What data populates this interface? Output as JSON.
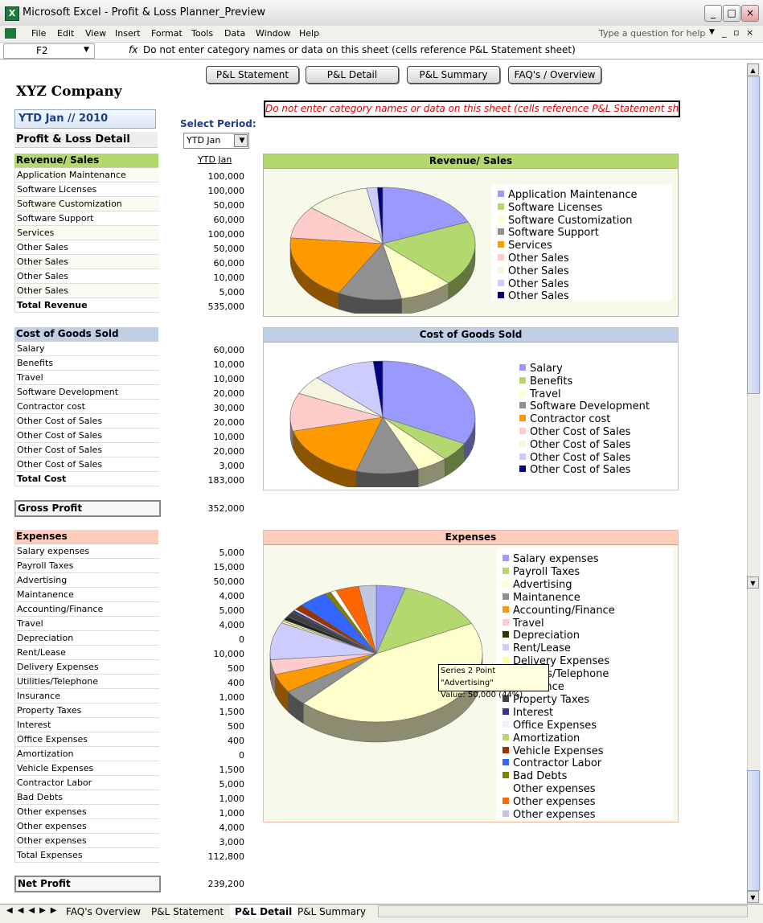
{
  "window": {
    "title": "Microsoft Excel - Profit & Loss Planner_Preview",
    "app_icon_letter": "X",
    "minimize": "_",
    "maximize": "□",
    "close": "×"
  },
  "menubar": {
    "items": [
      "File",
      "Edit",
      "View",
      "Insert",
      "Format",
      "Tools",
      "Data",
      "Window",
      "Help"
    ],
    "ask_placeholder": "Type a question for help"
  },
  "formula_bar": {
    "cell": "F2",
    "fx": "fx",
    "formula": "Do not enter category names or data on this sheet (cells reference P&L Statement sheet)"
  },
  "sheet": {
    "buttons": [
      "P&L Statement",
      "P&L Detail",
      "P&L Summary",
      "FAQ's / Overview"
    ],
    "company": "XYZ Company",
    "warning": "Do not enter category names or data on this sheet (cells reference P&L Statement sheet)",
    "period_display": "YTD Jan // 2010",
    "section_title": "Profit & Loss Detail",
    "select_period_label": "Select Period:",
    "period_value": "YTD Jan",
    "column_header": "YTD Jan",
    "revenue": {
      "header": "Revenue/ Sales",
      "rows": [
        {
          "label": "Application Maintenance",
          "value": "100,000"
        },
        {
          "label": "Software Licenses",
          "value": "100,000"
        },
        {
          "label": "Software Customization",
          "value": "50,000"
        },
        {
          "label": "Software Support",
          "value": "60,000"
        },
        {
          "label": "Services",
          "value": "100,000"
        },
        {
          "label": "Other Sales",
          "value": "50,000"
        },
        {
          "label": "Other Sales",
          "value": "60,000"
        },
        {
          "label": "Other Sales",
          "value": "10,000"
        },
        {
          "label": "Other Sales",
          "value": "5,000"
        }
      ],
      "total_label": "Total Revenue",
      "total_value": "535,000"
    },
    "cogs": {
      "header": "Cost of Goods Sold",
      "rows": [
        {
          "label": "Salary",
          "value": "60,000"
        },
        {
          "label": "Benefits",
          "value": "10,000"
        },
        {
          "label": "Travel",
          "value": "10,000"
        },
        {
          "label": "Software Development",
          "value": "20,000"
        },
        {
          "label": "Contractor cost",
          "value": "30,000"
        },
        {
          "label": "Other Cost of Sales",
          "value": "20,000"
        },
        {
          "label": "Other Cost of Sales",
          "value": "10,000"
        },
        {
          "label": "Other Cost of Sales",
          "value": "20,000"
        },
        {
          "label": "Other Cost of Sales",
          "value": "3,000"
        }
      ],
      "total_label": "Total Cost",
      "total_value": "183,000"
    },
    "gross_profit": {
      "label": "Gross Profit",
      "value": "352,000"
    },
    "expenses": {
      "header": "Expenses",
      "rows": [
        {
          "label": "Salary expenses",
          "value": "5,000"
        },
        {
          "label": "Payroll Taxes",
          "value": "15,000"
        },
        {
          "label": "Advertising",
          "value": "50,000"
        },
        {
          "label": "Maintanence",
          "value": "4,000"
        },
        {
          "label": "Accounting/Finance",
          "value": "5,000"
        },
        {
          "label": "Travel",
          "value": "4,000"
        },
        {
          "label": "Depreciation",
          "value": "0"
        },
        {
          "label": "Rent/Lease",
          "value": "10,000"
        },
        {
          "label": "Delivery Expenses",
          "value": "500"
        },
        {
          "label": "Utilities/Telephone",
          "value": "400"
        },
        {
          "label": "Insurance",
          "value": "1,000"
        },
        {
          "label": "Property Taxes",
          "value": "1,500"
        },
        {
          "label": "Interest",
          "value": "500"
        },
        {
          "label": "Office Expenses",
          "value": "400"
        },
        {
          "label": "Amortization",
          "value": "0"
        },
        {
          "label": "Vehicle Expenses",
          "value": "1,500"
        },
        {
          "label": "Contractor Labor",
          "value": "5,000"
        },
        {
          "label": "Bad Debts",
          "value": "1,000"
        },
        {
          "label": "Other expenses",
          "value": "1,000"
        },
        {
          "label": "Other expenses",
          "value": "4,000"
        },
        {
          "label": "Other expenses",
          "value": "3,000"
        }
      ],
      "total_label": "Total Expenses",
      "total_value": "112,800"
    },
    "net_profit": {
      "label": "Net Profit",
      "value": "239,200"
    },
    "tooltip": {
      "line1": "Series 2 Point \"Advertising\"",
      "line2": "Value: 50,000 (44%)"
    }
  },
  "chart_data": [
    {
      "type": "pie",
      "title": "Revenue/ Sales",
      "categories": [
        "Application Maintenance",
        "Software Licenses",
        "Software Customization",
        "Software Support",
        "Services",
        "Other Sales",
        "Other Sales",
        "Other Sales",
        "Other Sales"
      ],
      "values": [
        100000,
        100000,
        50000,
        60000,
        100000,
        50000,
        60000,
        10000,
        5000
      ],
      "colors": [
        "#9999ff",
        "#b3d96e",
        "#ffffcc",
        "#909090",
        "#ff9900",
        "#ffcccc",
        "#f5f5e0",
        "#ccccff",
        "#000080"
      ],
      "legend": "right"
    },
    {
      "type": "pie",
      "title": "Cost of Goods Sold",
      "categories": [
        "Salary",
        "Benefits",
        "Travel",
        "Software Development",
        "Contractor cost",
        "Other Cost of Sales",
        "Other Cost of Sales",
        "Other Cost of Sales",
        "Other Cost of Sales"
      ],
      "values": [
        60000,
        10000,
        10000,
        20000,
        30000,
        20000,
        10000,
        20000,
        3000
      ],
      "colors": [
        "#9999ff",
        "#b3d96e",
        "#ffffcc",
        "#909090",
        "#ff9900",
        "#ffcccc",
        "#f5f5e0",
        "#ccccff",
        "#000080"
      ],
      "legend": "right"
    },
    {
      "type": "pie",
      "title": "Expenses",
      "categories": [
        "Salary expenses",
        "Payroll Taxes",
        "Advertising",
        "Maintanence",
        "Accounting/Finance",
        "Travel",
        "Depreciation",
        "Rent/Lease",
        "Delivery Expenses",
        "Utilities/Telephone",
        "Insurance",
        "Property Taxes",
        "Interest",
        "Office Expenses",
        "Amortization",
        "Vehicle Expenses",
        "Contractor Labor",
        "Bad Debts",
        "Other expenses",
        "Other expenses",
        "Other expenses"
      ],
      "values": [
        5000,
        15000,
        50000,
        4000,
        5000,
        4000,
        0,
        10000,
        500,
        400,
        1000,
        1500,
        500,
        400,
        0,
        1500,
        5000,
        1000,
        1000,
        4000,
        3000
      ],
      "colors": [
        "#9999ff",
        "#b3d96e",
        "#ffffcc",
        "#909090",
        "#ff9900",
        "#ffcccc",
        "#333300",
        "#ccccff",
        "#ffff99",
        "#ffffe8",
        "#222222",
        "#404040",
        "#333399",
        "#eeeeff",
        "#b3d96e",
        "#993300",
        "#3366ff",
        "#808000",
        "#fffff0",
        "#ff6600",
        "#c0c8e0"
      ],
      "legend": "right"
    }
  ],
  "tabs": {
    "items": [
      "FAQ's Overview",
      "P&L Statement",
      "P&L Detail",
      "P&L Summary"
    ],
    "active": "P&L Detail"
  },
  "colors": {
    "revenue_header": "#b3d96e",
    "cogs_header": "#c0cfe6",
    "expenses_header": "#ffcbbb",
    "chart_bg_green": "#f7faea",
    "period_text": "#1b3f8b",
    "warning_text": "#dd0000"
  }
}
